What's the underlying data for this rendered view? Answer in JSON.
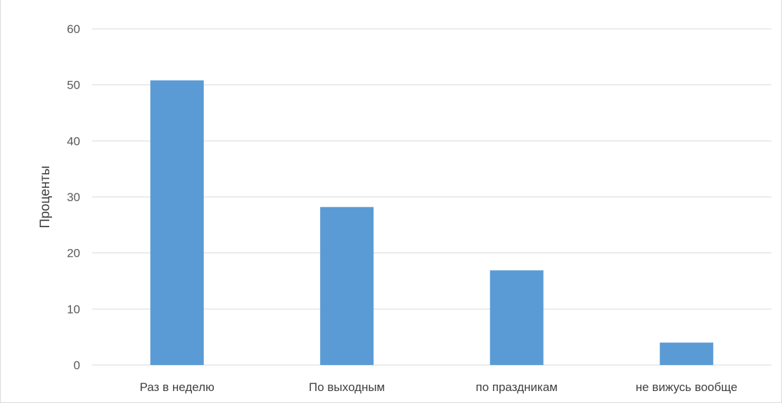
{
  "chart_data": {
    "type": "bar",
    "title": "",
    "xlabel": "",
    "ylabel": "Проценты",
    "categories": [
      "Раз в неделю",
      "По выходным",
      "по праздникам",
      "не вижусь вообще"
    ],
    "values": [
      50.8,
      28.2,
      16.9,
      4.0
    ],
    "ylim": [
      0,
      60
    ],
    "yticks": [
      0,
      10,
      20,
      30,
      40,
      50,
      60
    ],
    "grid": true,
    "legend": "none",
    "bar_color": "#5b9bd5",
    "grid_color": "#d9d9d9"
  }
}
